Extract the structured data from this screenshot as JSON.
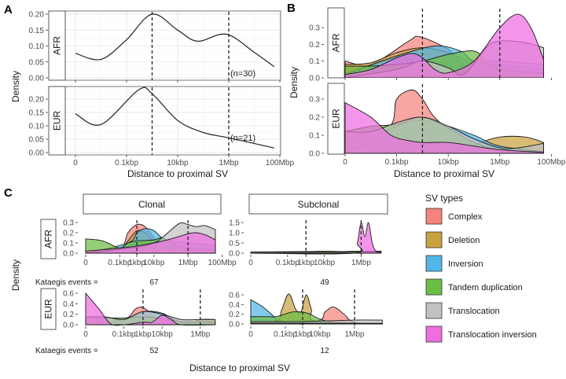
{
  "panel_labels": [
    "A",
    "B",
    "C"
  ],
  "axis_titles": {
    "x": "Distance to proximal SV",
    "y": "Density"
  },
  "x_ticks": {
    "wide": [
      {
        "bp": 1,
        "label": "0"
      },
      {
        "bp": 100,
        "label": "0.1kbp"
      },
      {
        "bp": 10000,
        "label": "10kbp"
      },
      {
        "bp": 1000000,
        "label": "1Mbp"
      },
      {
        "bp": 100000000,
        "label": "100Mbp"
      }
    ],
    "c_clonal_afr": [
      {
        "bp": 1,
        "label": "0"
      },
      {
        "bp": 100,
        "label": "0.1kbp"
      },
      {
        "bp": 1000,
        "label": "1kbp"
      },
      {
        "bp": 10000,
        "label": "10kbp"
      },
      {
        "bp": 1000000,
        "label": "1Mbp"
      },
      {
        "bp": 100000000,
        "label": "100Mbp"
      }
    ],
    "c_short": [
      {
        "bp": 1,
        "label": "0"
      },
      {
        "bp": 100,
        "label": "0.1kbp"
      },
      {
        "bp": 1000,
        "label": "1kbp"
      },
      {
        "bp": 10000,
        "label": "10kbp"
      },
      {
        "bp": 1000000,
        "label": "1Mbp"
      }
    ]
  },
  "columns": {
    "clonal": "Clonal",
    "subclonal": "Subclonal"
  },
  "kataegis": {
    "label": "Kataegis events =",
    "AFR": {
      "clonal": "67",
      "subclonal": "49"
    },
    "EUR": {
      "clonal": "52",
      "subclonal": "12"
    }
  },
  "legend": {
    "title": "SV types",
    "position": "right",
    "items": [
      {
        "name": "Complex",
        "color": "#F4837D"
      },
      {
        "name": "Deletion",
        "color": "#C9A240"
      },
      {
        "name": "Inversion",
        "color": "#52B7E8"
      },
      {
        "name": "Tandem duplication",
        "color": "#6CBD45"
      },
      {
        "name": "Translocation",
        "color": "#C2C2C2"
      },
      {
        "name": "Translocation inversion",
        "color": "#EE6EE0"
      }
    ]
  },
  "chart_data": [
    {
      "id": "A_AFR",
      "panel": "A",
      "facet": "AFR",
      "type": "line",
      "x_scale": "log",
      "ylim": [
        0,
        0.21
      ],
      "y_ticks": [
        0,
        0.05,
        0.1,
        0.15,
        0.2
      ],
      "grid": true,
      "vlines_bp": [
        1000,
        1000000
      ],
      "annotation": "(n=30)",
      "series": [
        {
          "x": [
            1,
            10,
            100,
            1000,
            10000,
            60000,
            800000,
            10000000,
            60000000
          ],
          "y": [
            0.077,
            0.058,
            0.12,
            0.2,
            0.15,
            0.115,
            0.137,
            0.08,
            0.035
          ]
        }
      ]
    },
    {
      "id": "A_EUR",
      "panel": "A",
      "facet": "EUR",
      "type": "line",
      "x_scale": "log",
      "ylim": [
        0,
        0.245
      ],
      "y_ticks": [
        0,
        0.05,
        0.1,
        0.15,
        0.2
      ],
      "grid": true,
      "vlines_bp": [
        1000,
        1000000
      ],
      "annotation": "(n=21)",
      "series": [
        {
          "x": [
            1,
            10,
            300,
            1000,
            10000,
            100000,
            1000000,
            60000000
          ],
          "y": [
            0.145,
            0.105,
            0.235,
            0.22,
            0.12,
            0.075,
            0.055,
            0.017
          ]
        }
      ]
    },
    {
      "id": "B_AFR",
      "panel": "B",
      "facet": "AFR",
      "type": "area",
      "x_scale": "log",
      "ylim": [
        0,
        0.42
      ],
      "y_ticks": [
        0,
        0.1,
        0.2,
        0.3
      ],
      "grid": false,
      "vlines_bp": [
        1000,
        1000000
      ],
      "series": [
        {
          "name": "Complex",
          "x": [
            1,
            10,
            300,
            800,
            10000,
            100000,
            50000000
          ],
          "y": [
            0.1,
            0.08,
            0.22,
            0.245,
            0.17,
            0.05,
            0.02
          ]
        },
        {
          "name": "Deletion",
          "x": [
            1,
            10,
            100,
            1000,
            10000,
            100000,
            50000000
          ],
          "y": [
            0.08,
            0.09,
            0.15,
            0.18,
            0.15,
            0.1,
            0.05
          ]
        },
        {
          "name": "Inversion",
          "x": [
            1,
            100,
            3000,
            30000,
            100000,
            1000000,
            50000000
          ],
          "y": [
            0.02,
            0.13,
            0.19,
            0.16,
            0.1,
            0.1,
            0.08
          ]
        },
        {
          "name": "Tandem duplication",
          "x": [
            1,
            10,
            100,
            1000,
            10000,
            100000,
            300000,
            1000000,
            50000000
          ],
          "y": [
            0.07,
            0.07,
            0.08,
            0.1,
            0.14,
            0.16,
            0.1,
            0.05,
            0.03
          ]
        },
        {
          "name": "Translocation",
          "x": [
            1,
            100,
            1000,
            10000,
            40000,
            300000,
            1000000,
            10000000,
            50000000
          ],
          "y": [
            0,
            0.05,
            0.1,
            0.06,
            0.02,
            0.18,
            0.22,
            0.21,
            0.18
          ]
        },
        {
          "name": "Translocation inversion",
          "x": [
            1,
            10,
            100,
            400,
            1000,
            3000,
            10000,
            100000,
            1000000,
            5000000,
            16000000,
            50000000
          ],
          "y": [
            0.02,
            0.05,
            0.12,
            0.145,
            0.12,
            0.05,
            0.03,
            0.1,
            0.3,
            0.38,
            0.3,
            0.11
          ]
        }
      ]
    },
    {
      "id": "B_EUR",
      "panel": "B",
      "facet": "EUR",
      "type": "area",
      "x_scale": "log",
      "ylim": [
        0,
        0.39
      ],
      "y_ticks": [
        0,
        0.1,
        0.2,
        0.3
      ],
      "grid": false,
      "vlines_bp": [
        1000
      ],
      "series": [
        {
          "name": "Complex",
          "x": [
            1,
            50,
            100,
            400,
            1000,
            4000,
            100000,
            50000000
          ],
          "y": [
            0,
            0.14,
            0.3,
            0.35,
            0.3,
            0.18,
            0.05,
            0.01
          ]
        },
        {
          "name": "Deletion",
          "x": [
            1,
            10000,
            100000,
            1000000,
            10000000,
            50000000
          ],
          "y": [
            0,
            0.01,
            0.05,
            0.09,
            0.09,
            0.06
          ]
        },
        {
          "name": "Inversion",
          "x": [
            1,
            100,
            1000,
            10000,
            100000,
            1000000,
            50000000
          ],
          "y": [
            0,
            0.15,
            0.18,
            0.15,
            0.1,
            0.04,
            0.01
          ]
        },
        {
          "name": "Tandem duplication",
          "x": [
            1,
            10,
            100,
            1000,
            10000,
            100000,
            1000000,
            50000000
          ],
          "y": [
            0.12,
            0.15,
            0.16,
            0.2,
            0.14,
            0.06,
            0.02,
            0.01
          ]
        },
        {
          "name": "Translocation",
          "x": [
            1,
            10,
            100,
            1000,
            10000,
            100000,
            1000000,
            5000000,
            50000000
          ],
          "y": [
            0.12,
            0.12,
            0.17,
            0.2,
            0.15,
            0.08,
            0.03,
            0.03,
            0.055
          ]
        },
        {
          "name": "Translocation inversion",
          "x": [
            1,
            10,
            60,
            300,
            1000,
            10000,
            100000,
            1000000,
            50000000
          ],
          "y": [
            0.28,
            0.2,
            0.1,
            0.07,
            0.06,
            0.06,
            0.04,
            0.02,
            0.005
          ]
        }
      ]
    },
    {
      "id": "C_clonal_AFR",
      "panel": "C",
      "facet": "AFR",
      "column": "Clonal",
      "type": "area",
      "x_scale": "log",
      "ylim": [
        0,
        0.35
      ],
      "y_ticks": [
        0,
        0.1,
        0.2,
        0.3
      ],
      "grid": false,
      "vlines_bp": [
        1000,
        1000000
      ],
      "series": [
        {
          "name": "Complex",
          "x": [
            1,
            100,
            300,
            1000,
            3000,
            10000,
            30000,
            100000
          ],
          "y": [
            0,
            0.05,
            0.2,
            0.28,
            0.26,
            0.15,
            0.05,
            0.02
          ]
        },
        {
          "name": "Deletion",
          "x": [
            1,
            100,
            300,
            1000,
            3000,
            10000,
            100000
          ],
          "y": [
            0,
            0.04,
            0.12,
            0.22,
            0.2,
            0.12,
            0.03
          ]
        },
        {
          "name": "Inversion",
          "x": [
            1,
            300,
            1000,
            3000,
            10000,
            30000,
            100000,
            1000000,
            40000000
          ],
          "y": [
            0,
            0.1,
            0.2,
            0.24,
            0.22,
            0.15,
            0.12,
            0.1,
            0.08
          ]
        },
        {
          "name": "Tandem duplication",
          "x": [
            1,
            10,
            100,
            300,
            1000,
            10000,
            30000,
            100000,
            1000000,
            40000000
          ],
          "y": [
            0.14,
            0.12,
            0.05,
            0.1,
            0.12,
            0.13,
            0.15,
            0.1,
            0.05,
            0.03
          ]
        },
        {
          "name": "Translocation",
          "x": [
            1,
            1000,
            10000,
            30000,
            300000,
            1000000,
            3000000,
            10000000,
            40000000
          ],
          "y": [
            0,
            0.06,
            0.1,
            0.15,
            0.29,
            0.28,
            0.26,
            0.27,
            0.23
          ]
        },
        {
          "name": "Translocation inversion",
          "x": [
            1,
            100,
            1000,
            10000,
            100000,
            1000000,
            3000000,
            10000000,
            40000000
          ],
          "y": [
            0.02,
            0.05,
            0.07,
            0.1,
            0.14,
            0.19,
            0.2,
            0.18,
            0.13
          ]
        }
      ]
    },
    {
      "id": "C_subclonal_AFR",
      "panel": "C",
      "facet": "AFR",
      "column": "Subclonal",
      "type": "area",
      "x_scale": "log",
      "ylim": [
        0,
        1.7
      ],
      "y_ticks": [
        0,
        0.5,
        1,
        1.5
      ],
      "grid": false,
      "vlines_bp": [
        1000,
        1000000
      ],
      "series": [
        {
          "name": "Tandem duplication",
          "x": [
            1,
            1000,
            10000,
            100000,
            400000,
            12000000
          ],
          "y": [
            0.06,
            0.08,
            0.1,
            0.08,
            0.1,
            0.1
          ]
        },
        {
          "name": "Translocation",
          "x": [
            1,
            12000000
          ],
          "y": [
            0.05,
            0.05
          ]
        },
        {
          "name": "Translocation inversion",
          "x": [
            1,
            400000,
            630000,
            1000000,
            1600000,
            2500000,
            4000000,
            6300000,
            12000000
          ],
          "y": [
            0,
            0,
            0.5,
            1.5,
            0.8,
            1.5,
            0.5,
            0.1,
            0.05
          ]
        }
      ]
    },
    {
      "id": "C_clonal_EUR",
      "panel": "C",
      "facet": "EUR",
      "column": "Clonal",
      "type": "area",
      "x_scale": "log",
      "ylim": [
        0,
        0.65
      ],
      "y_ticks": [
        0,
        0.2,
        0.4,
        0.6
      ],
      "grid": false,
      "vlines_bp": [
        1000,
        1000000
      ],
      "series": [
        {
          "name": "Complex",
          "x": [
            1,
            100,
            400,
            1000,
            3000,
            10000,
            6000000
          ],
          "y": [
            0,
            0.1,
            0.3,
            0.33,
            0.2,
            0.1,
            0
          ]
        },
        {
          "name": "Deletion",
          "x": [
            1,
            100000,
            1000000,
            6000000
          ],
          "y": [
            0,
            0.02,
            0.1,
            0.1
          ]
        },
        {
          "name": "Inversion",
          "x": [
            1,
            100,
            1000,
            10000,
            100000,
            6000000
          ],
          "y": [
            0,
            0.1,
            0.25,
            0.22,
            0.05,
            0.02
          ]
        },
        {
          "name": "Tandem duplication",
          "x": [
            1,
            10,
            100,
            1000,
            10000,
            100000,
            1000000,
            6000000
          ],
          "y": [
            0.13,
            0.13,
            0.13,
            0.15,
            0.12,
            0.06,
            0.06,
            0.05
          ]
        },
        {
          "name": "Translocation",
          "x": [
            1,
            10,
            100,
            1000,
            10000,
            100000,
            1000000,
            6000000
          ],
          "y": [
            0.15,
            0.15,
            0.1,
            0.25,
            0.2,
            0.1,
            0.1,
            0.1
          ]
        },
        {
          "name": "Translocation inversion",
          "x": [
            1,
            5,
            20,
            100,
            1000,
            3000,
            10000,
            30000,
            100000,
            6000000
          ],
          "y": [
            0.6,
            0.3,
            0.02,
            0,
            0.05,
            0.05,
            0.18,
            0.1,
            0,
            0
          ]
        }
      ]
    },
    {
      "id": "C_subclonal_EUR",
      "panel": "C",
      "facet": "EUR",
      "column": "Subclonal",
      "type": "area",
      "x_scale": "log",
      "ylim": [
        0,
        0.7
      ],
      "y_ticks": [
        0,
        0.2,
        0.4,
        0.6
      ],
      "grid": false,
      "vlines_bp": [
        1000,
        1000000
      ],
      "series": [
        {
          "name": "Complex",
          "x": [
            1,
            5000,
            20000,
            63000,
            250000,
            1000000,
            40000000
          ],
          "y": [
            0,
            0.05,
            0.25,
            0.35,
            0.2,
            0.03,
            0.02
          ]
        },
        {
          "name": "Deletion",
          "x": [
            1,
            30,
            63,
            160,
            400,
            800,
            1600,
            3200,
            6300,
            40000000
          ],
          "y": [
            0,
            0.05,
            0.3,
            0.62,
            0.3,
            0.25,
            0.6,
            0.3,
            0.05,
            0.02
          ]
        },
        {
          "name": "Inversion",
          "x": [
            1,
            5,
            30,
            100,
            40000000
          ],
          "y": [
            0.5,
            0.35,
            0.12,
            0.05,
            0
          ]
        },
        {
          "name": "Tandem duplication",
          "x": [
            1,
            10,
            30,
            300,
            2000,
            10000,
            100000,
            40000000
          ],
          "y": [
            0.15,
            0.15,
            0.15,
            0.25,
            0.22,
            0.1,
            0.03,
            0.02
          ]
        },
        {
          "name": "Translocation",
          "x": [
            1,
            1000,
            1000000,
            40000000
          ],
          "y": [
            0.05,
            0.05,
            0.08,
            0.08
          ]
        },
        {
          "name": "Translocation inversion",
          "x": [
            1,
            40000000
          ],
          "y": [
            0.02,
            0.01
          ]
        }
      ]
    }
  ]
}
